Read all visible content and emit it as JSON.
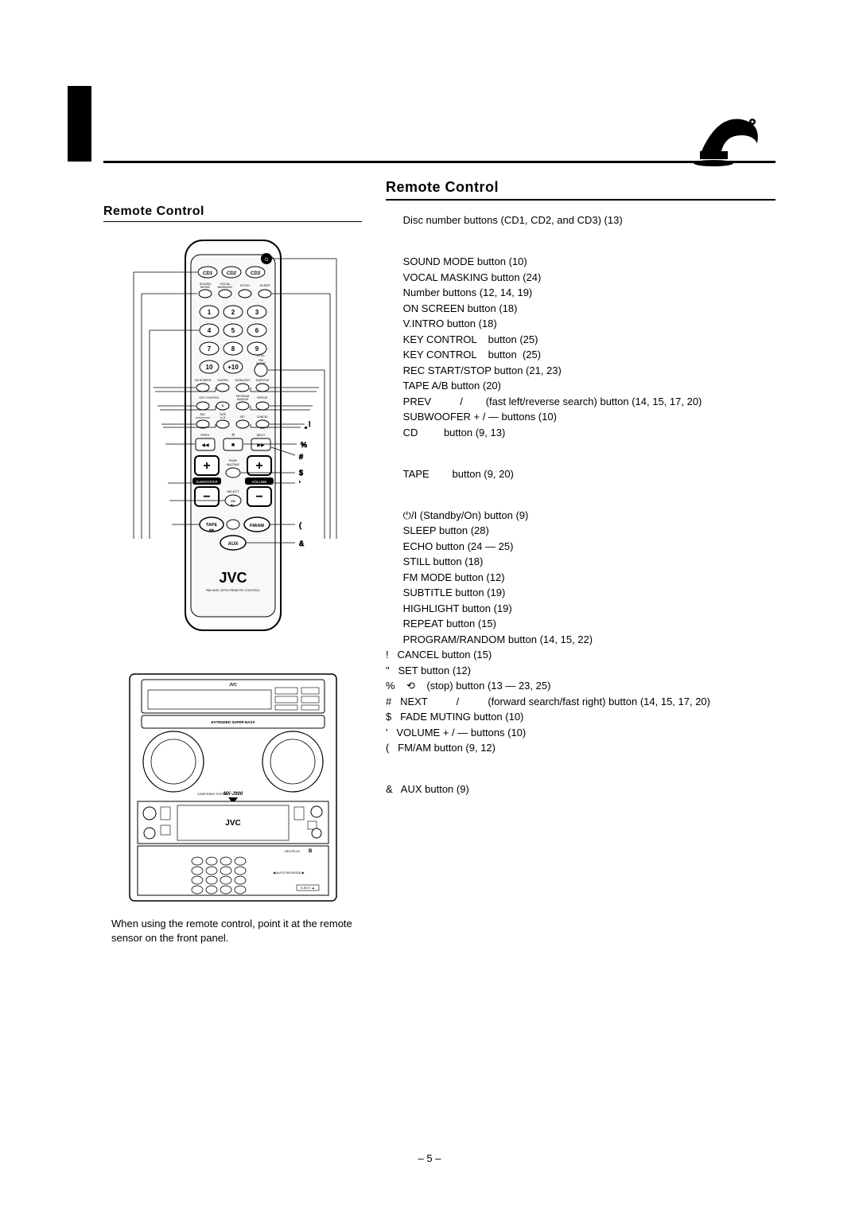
{
  "left": {
    "section_title": "Remote Control",
    "caption": "When using the remote control, point it at the remote sensor on the front panel.",
    "remote_label_top": "RM-SMX-J970V REMOTE CONTROL",
    "brand": "JVC",
    "stereo_model": "MX-J900",
    "stereo_band": "EXTENDED SUPER BASS"
  },
  "right": {
    "section_title": "Remote Control",
    "items": [
      {
        "t": "Disc number buttons (CD1, CD2, and CD3) (13)"
      },
      {
        "t": "",
        "gap": true
      },
      {
        "t": "SOUND MODE button (10)"
      },
      {
        "t": "VOCAL MASKING button (24)"
      },
      {
        "t": "Number buttons (12, 14, 19)"
      },
      {
        "t": "ON SCREEN button (18)"
      },
      {
        "t": "V.INTRO button (18)"
      },
      {
        "t": "KEY CONTROL    button (25)"
      },
      {
        "t": "KEY CONTROL    button  (25)"
      },
      {
        "t": "REC START/STOP button (21, 23)"
      },
      {
        "t": "TAPE A/B button (20)"
      },
      {
        "t": "PREV          /        (fast left/reverse search) button (14, 15, 17, 20)"
      },
      {
        "t": "SUBWOOFER + / — buttons (10)"
      },
      {
        "t": "CD         button (9, 13)"
      },
      {
        "t": "",
        "gap": true
      },
      {
        "t": "TAPE        button (9, 20)"
      },
      {
        "t": "",
        "gap": true
      },
      {
        "t": "⏻/I (Standby/On) button (9)"
      },
      {
        "t": "SLEEP button (28)"
      },
      {
        "t": "ECHO button (24 — 25)"
      },
      {
        "t": "STILL button (18)"
      },
      {
        "t": "FM MODE button (12)"
      },
      {
        "t": "SUBTITLE button (19)"
      },
      {
        "t": "HIGHLIGHT button (19)"
      },
      {
        "t": "REPEAT button (15)"
      },
      {
        "t": "PROGRAM/RANDOM button (14, 15, 22)"
      },
      {
        "pre": "!",
        "t": "CANCEL button (15)"
      },
      {
        "pre": "\"",
        "t": "SET button (12)"
      },
      {
        "pre": "%",
        "t": " ⟲    (stop) button (13 — 23, 25)"
      },
      {
        "pre": "#",
        "t": "NEXT          /          (forward search/fast right) button (14, 15, 17, 20)"
      },
      {
        "pre": "$",
        "t": "FADE MUTING button (10)"
      },
      {
        "pre": "'",
        "t": "VOLUME + / — buttons (10)"
      },
      {
        "pre": "(",
        "t": "FM/AM button (9, 12)"
      },
      {
        "t": "",
        "gap": true
      },
      {
        "pre": "&",
        "t": "AUX button (9)"
      }
    ]
  },
  "page_marker": "– 5 –",
  "colors": {
    "text": "#000000",
    "bg": "#ffffff"
  },
  "remote_btn_labels": {
    "row_sound": [
      "SOUND MODE",
      "VOCAL MASKING",
      "ECHO",
      "SLEEP"
    ],
    "row_onscreen": [
      "ON SCREEN",
      "V.INTRO",
      "HIGHLIGHT",
      "SUBTITLE"
    ],
    "row_key": [
      "KEY",
      "CONTROL",
      "PROGRAM RANDOM",
      "REPEAT"
    ],
    "row_rec": [
      "REC START/STOP",
      "TAPE A / B",
      "SET",
      "CANCEL"
    ],
    "row_nav": [
      "PREV",
      "NEXT"
    ],
    "mid": [
      "SUBWOOFER",
      "FADE MUTING",
      "VOLUME",
      "SELECT"
    ],
    "bottom": [
      "CD",
      "TAPE",
      "FM/AM",
      "AUX"
    ],
    "still_fm": [
      "STILL",
      "FM MODE"
    ]
  }
}
